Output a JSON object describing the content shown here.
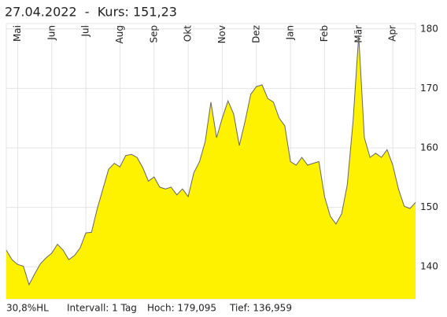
{
  "chart_data": {
    "type": "area",
    "title": "27.04.2022  -  Kurs: 151,23",
    "footer": [
      "30,8%HL",
      "Intervall: 1 Tag",
      "Hoch: 179,095",
      "Tief: 136,959"
    ],
    "categories": [
      null,
      null,
      "Mai",
      null,
      null,
      null,
      null,
      null,
      "Jun",
      null,
      null,
      null,
      null,
      null,
      "Jul",
      null,
      null,
      null,
      null,
      null,
      "Aug",
      null,
      null,
      null,
      null,
      null,
      "Sep",
      null,
      null,
      null,
      null,
      null,
      "Okt",
      null,
      null,
      null,
      null,
      null,
      "Nov",
      null,
      null,
      null,
      null,
      null,
      "Dez",
      null,
      null,
      null,
      null,
      null,
      "Jan",
      null,
      null,
      null,
      null,
      null,
      "Feb",
      null,
      null,
      null,
      null,
      null,
      "Mär",
      null,
      null,
      null,
      null,
      null,
      "Apr",
      null,
      null,
      null,
      null
    ],
    "values": [
      142.8,
      141.2,
      140.4,
      140.1,
      137.0,
      138.8,
      140.5,
      141.5,
      142.3,
      143.8,
      142.8,
      141.2,
      141.9,
      143.2,
      145.7,
      145.8,
      149.8,
      153.1,
      156.4,
      157.4,
      156.8,
      158.7,
      158.9,
      158.4,
      156.7,
      154.4,
      155.1,
      153.4,
      153.1,
      153.4,
      152.1,
      153.1,
      151.8,
      155.8,
      157.7,
      161.1,
      167.7,
      161.7,
      165.0,
      167.9,
      165.7,
      160.4,
      164.4,
      169.0,
      170.3,
      170.6,
      168.3,
      167.7,
      165.0,
      163.7,
      157.7,
      157.1,
      158.4,
      157.1,
      157.4,
      157.7,
      151.8,
      148.5,
      147.2,
      148.9,
      153.8,
      164.4,
      178.9,
      161.7,
      158.4,
      159.1,
      158.4,
      159.7,
      157.1,
      153.1,
      150.2,
      149.8,
      150.8
    ],
    "color": "#fff200",
    "line_color": "#666666",
    "ylim": [
      134.6,
      180.9
    ],
    "yticks": [
      140,
      150,
      160,
      170,
      180
    ],
    "grid": true
  }
}
